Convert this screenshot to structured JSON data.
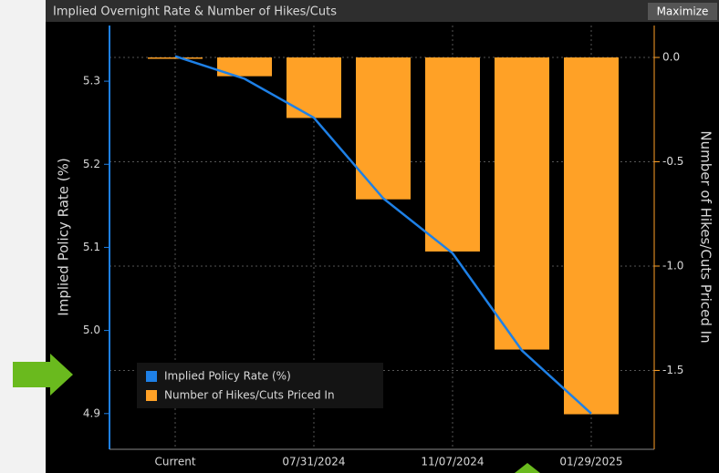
{
  "ui": {
    "button": "Maximize"
  },
  "chart_data": {
    "type": "combo",
    "title": "Implied Overnight Rate & Number of Hikes/Cuts",
    "ylabel": "Implied Policy Rate (%)",
    "y2label": "Number of Hikes/Cuts Priced In",
    "categories": [
      "Current",
      null,
      "07/31/2024",
      null,
      "11/07/2024",
      null,
      "01/29/2025"
    ],
    "series": [
      {
        "name": "Implied Policy Rate (%)",
        "type": "line",
        "color": "#1e80e6",
        "values": [
          5.33,
          5.303,
          5.256,
          5.159,
          5.093,
          4.976,
          4.9
        ]
      },
      {
        "name": "Number of Hikes/Cuts Priced In",
        "type": "bar",
        "axis": "y2",
        "color": "#ffa126",
        "values": [
          0,
          -0.09,
          -0.29,
          -0.68,
          -0.93,
          -1.4,
          -1.71
        ]
      }
    ],
    "ylim": [
      4.857,
      5.367
    ],
    "yticks": [
      4.9,
      {
        "value": 5,
        "label": "5.0"
      },
      5.1,
      5.2,
      5.3
    ],
    "y2lim": [
      -1.878,
      0.153
    ],
    "y2ticks": [
      -1.5,
      {
        "value": -1,
        "label": "-1.0"
      },
      -0.5,
      {
        "value": 0,
        "label": "0.0"
      }
    ],
    "grid": true,
    "legend": "lower-left"
  }
}
